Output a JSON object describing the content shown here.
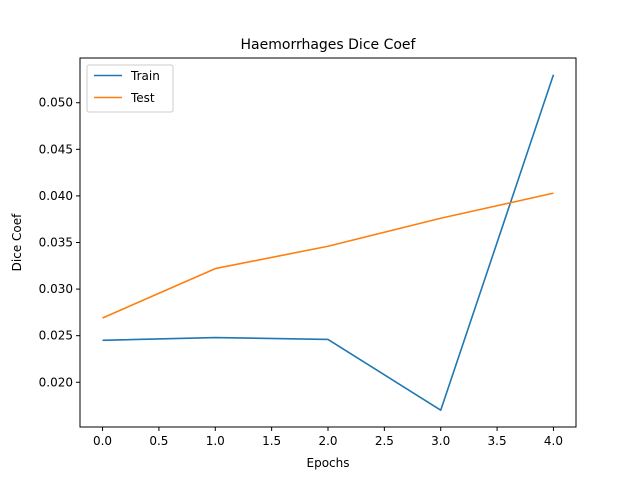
{
  "chart_data": {
    "type": "line",
    "title": "Haemorrhages Dice Coef",
    "xlabel": "Epochs",
    "ylabel": "Dice Coef",
    "x": [
      0,
      1,
      2,
      3,
      4
    ],
    "series": [
      {
        "name": "Train",
        "color": "#1f77b4",
        "values": [
          0.0245,
          0.0248,
          0.0246,
          0.017,
          0.053
        ]
      },
      {
        "name": "Test",
        "color": "#ff7f0e",
        "values": [
          0.0269,
          0.0322,
          0.0346,
          0.0376,
          0.0403
        ]
      }
    ],
    "xlim": [
      -0.2,
      4.2
    ],
    "ylim": [
      0.0152,
      0.0548
    ],
    "xticks": [
      0.0,
      0.5,
      1.0,
      1.5,
      2.0,
      2.5,
      3.0,
      3.5,
      4.0
    ],
    "xtick_labels": [
      "0.0",
      "0.5",
      "1.0",
      "1.5",
      "2.0",
      "2.5",
      "3.0",
      "3.5",
      "4.0"
    ],
    "yticks": [
      0.02,
      0.025,
      0.03,
      0.035,
      0.04,
      0.045,
      0.05
    ],
    "ytick_labels": [
      "0.020",
      "0.025",
      "0.030",
      "0.035",
      "0.040",
      "0.045",
      "0.050"
    ],
    "grid": false,
    "legend_position": "top-left"
  }
}
